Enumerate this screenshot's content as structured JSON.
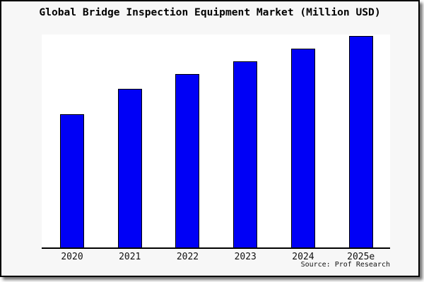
{
  "card": {
    "background": "#f7f7f7",
    "border_color": "#000000"
  },
  "chart_data": {
    "type": "bar",
    "title": "Global Bridge Inspection Equipment Market (Million USD)",
    "categories": [
      "2020",
      "2021",
      "2022",
      "2023",
      "2024",
      "2025e"
    ],
    "values": [
      63,
      75,
      82,
      88,
      94,
      100
    ],
    "value_note": "no y-axis ticks shown; values are bar heights relative to 2025e = 100",
    "xlabel": "",
    "ylabel": "",
    "ylim": [
      0,
      100
    ],
    "grid": false,
    "legend": false,
    "bar_color": "#0000f6",
    "bar_border_color": "#000000",
    "axis_color": "#000000",
    "source": "Source: Prof Research"
  }
}
